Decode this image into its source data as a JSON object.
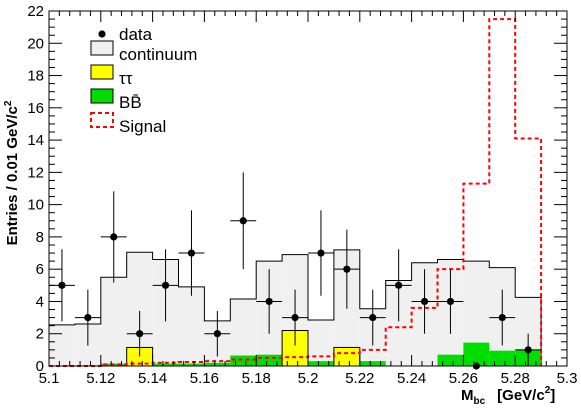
{
  "chart_data": {
    "type": "histogram",
    "xlabel": "M",
    "xlabel_sub": "bc",
    "xlabel_unit_open": "[GeV/c",
    "xlabel_unit_sup": "2",
    "xlabel_unit_close": "]",
    "ylabel": "Entries / 0.01 GeV/c",
    "ylabel_sup": "2",
    "xlim": [
      5.1,
      5.3
    ],
    "ylim": [
      0,
      22
    ],
    "grid": false,
    "legend_placement": "top-left",
    "x_ticks": [
      "5.1",
      "5.12",
      "5.14",
      "5.16",
      "5.18",
      "5.2",
      "5.22",
      "5.24",
      "5.26",
      "5.28",
      "5.3"
    ],
    "y_ticks": [
      "0",
      "2",
      "4",
      "6",
      "8",
      "10",
      "12",
      "14",
      "16",
      "18",
      "20",
      "22"
    ],
    "bin_edges": [
      5.1,
      5.11,
      5.12,
      5.13,
      5.14,
      5.15,
      5.16,
      5.17,
      5.18,
      5.19,
      5.2,
      5.21,
      5.22,
      5.23,
      5.24,
      5.25,
      5.26,
      5.27,
      5.28,
      5.29
    ],
    "series": [
      {
        "name": "continuum",
        "kind": "filled-hist",
        "color": "#f0f0f0",
        "edge": "#000000",
        "values": [
          2.55,
          2.6,
          5.5,
          7.05,
          6.6,
          4.9,
          2.8,
          4.15,
          6.5,
          6.9,
          2.85,
          7.2,
          3.55,
          5.3,
          6.4,
          6.6,
          6.5,
          6.1,
          4.25
        ]
      },
      {
        "name": "ττ",
        "kind": "filled-hist",
        "color": "#ffff00",
        "edge": "#000000",
        "values": [
          0,
          0,
          0,
          1.15,
          0,
          0,
          0,
          0,
          0,
          2.2,
          0,
          1.15,
          0,
          0,
          0,
          0,
          0,
          0,
          0
        ]
      },
      {
        "name": "BB̄",
        "kind": "filled-hist",
        "color": "#00dd00",
        "edge": "#000000",
        "values": [
          0,
          0,
          0.15,
          0.15,
          0.15,
          0.15,
          0.2,
          0.65,
          0.7,
          0.3,
          0.3,
          0.3,
          0.3,
          0,
          0,
          0.7,
          1.45,
          0.95,
          1.0
        ]
      },
      {
        "name": "Signal",
        "kind": "step",
        "color": "#ff0000",
        "values": [
          0,
          0,
          0.1,
          0.15,
          0.2,
          0.25,
          0.3,
          0.4,
          0.5,
          0.55,
          0.6,
          0.8,
          1.0,
          2.4,
          3.6,
          6.0,
          11.3,
          21.5,
          14.1
        ]
      },
      {
        "name": "data",
        "kind": "points",
        "color": "#000000",
        "points": [
          {
            "x": 5.105,
            "y": 5
          },
          {
            "x": 5.115,
            "y": 3
          },
          {
            "x": 5.125,
            "y": 8
          },
          {
            "x": 5.135,
            "y": 2
          },
          {
            "x": 5.145,
            "y": 5
          },
          {
            "x": 5.155,
            "y": 7
          },
          {
            "x": 5.165,
            "y": 2
          },
          {
            "x": 5.175,
            "y": 9
          },
          {
            "x": 5.185,
            "y": 4
          },
          {
            "x": 5.195,
            "y": 3
          },
          {
            "x": 5.205,
            "y": 7
          },
          {
            "x": 5.215,
            "y": 6
          },
          {
            "x": 5.225,
            "y": 3
          },
          {
            "x": 5.235,
            "y": 5
          },
          {
            "x": 5.245,
            "y": 4
          },
          {
            "x": 5.255,
            "y": 4
          },
          {
            "x": 5.265,
            "y": 0
          },
          {
            "x": 5.275,
            "y": 3
          },
          {
            "x": 5.285,
            "y": 1
          }
        ]
      }
    ],
    "legend": [
      {
        "label": "data",
        "kind": "points"
      },
      {
        "label": "continuum",
        "kind": "box",
        "color": "#f0f0f0"
      },
      {
        "label": "ττ",
        "kind": "box",
        "color": "#ffff00"
      },
      {
        "label": "BB̄",
        "kind": "box",
        "color": "#00dd00"
      },
      {
        "label": "Signal",
        "kind": "dashed-box",
        "color": "#ff0000"
      }
    ]
  }
}
